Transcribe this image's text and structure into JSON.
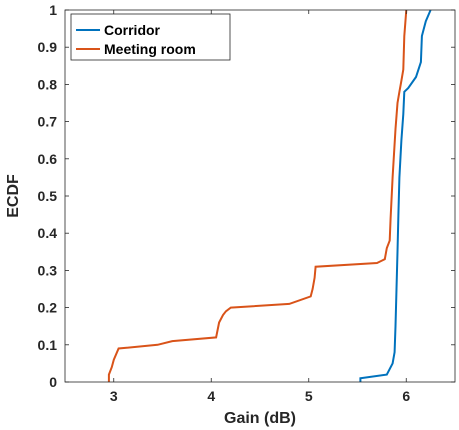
{
  "chart_data": {
    "type": "line",
    "title": "",
    "xlabel": "Gain (dB)",
    "ylabel": "ECDF",
    "xlim": [
      2.5,
      6.5
    ],
    "ylim": [
      0,
      1
    ],
    "xticks": [
      3,
      4,
      5,
      6
    ],
    "yticks": [
      0,
      0.1,
      0.2,
      0.3,
      0.4,
      0.5,
      0.6,
      0.7,
      0.8,
      0.9,
      1
    ],
    "xtick_labels": [
      "3",
      "4",
      "5",
      "6"
    ],
    "ytick_labels": [
      "0",
      "0.1",
      "0.2",
      "0.3",
      "0.4",
      "0.5",
      "0.6",
      "0.7",
      "0.8",
      "0.9",
      "1"
    ],
    "grid": false,
    "legend_position": "top-left",
    "series": [
      {
        "name": "Corridor",
        "color": "#0072bd",
        "points": [
          [
            5.53,
            0.0
          ],
          [
            5.53,
            0.01
          ],
          [
            5.8,
            0.02
          ],
          [
            5.86,
            0.05
          ],
          [
            5.88,
            0.08
          ],
          [
            5.89,
            0.15
          ],
          [
            5.9,
            0.25
          ],
          [
            5.91,
            0.35
          ],
          [
            5.92,
            0.45
          ],
          [
            5.93,
            0.55
          ],
          [
            5.95,
            0.65
          ],
          [
            5.97,
            0.72
          ],
          [
            5.98,
            0.78
          ],
          [
            6.02,
            0.79
          ],
          [
            6.1,
            0.82
          ],
          [
            6.15,
            0.86
          ],
          [
            6.16,
            0.93
          ],
          [
            6.2,
            0.97
          ],
          [
            6.25,
            1.0
          ]
        ]
      },
      {
        "name": "Meeting room",
        "color": "#d95319",
        "points": [
          [
            2.95,
            0.0
          ],
          [
            2.95,
            0.02
          ],
          [
            2.98,
            0.04
          ],
          [
            3.0,
            0.06
          ],
          [
            3.05,
            0.09
          ],
          [
            3.45,
            0.1
          ],
          [
            3.6,
            0.11
          ],
          [
            4.05,
            0.12
          ],
          [
            4.08,
            0.16
          ],
          [
            4.12,
            0.18
          ],
          [
            4.15,
            0.19
          ],
          [
            4.2,
            0.2
          ],
          [
            4.8,
            0.21
          ],
          [
            5.02,
            0.23
          ],
          [
            5.04,
            0.25
          ],
          [
            5.06,
            0.28
          ],
          [
            5.07,
            0.31
          ],
          [
            5.7,
            0.32
          ],
          [
            5.78,
            0.33
          ],
          [
            5.8,
            0.36
          ],
          [
            5.83,
            0.38
          ],
          [
            5.84,
            0.44
          ],
          [
            5.86,
            0.55
          ],
          [
            5.89,
            0.68
          ],
          [
            5.91,
            0.75
          ],
          [
            5.93,
            0.78
          ],
          [
            5.95,
            0.81
          ],
          [
            5.97,
            0.84
          ],
          [
            5.98,
            0.93
          ],
          [
            6.0,
            1.0
          ]
        ]
      }
    ]
  }
}
